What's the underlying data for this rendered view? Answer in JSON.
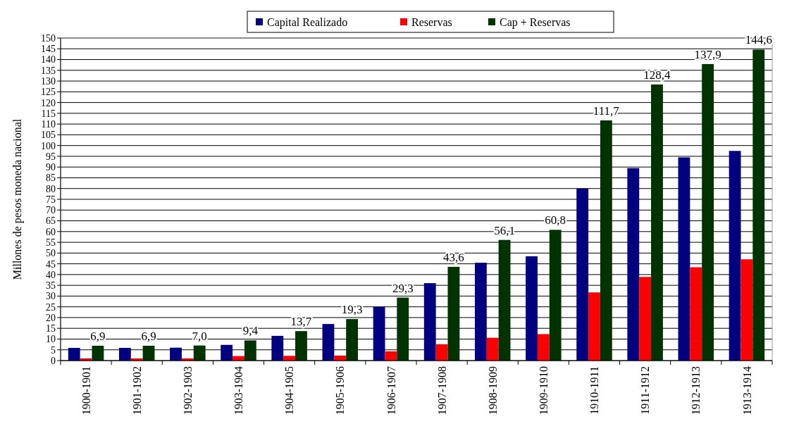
{
  "chart_data": {
    "type": "bar",
    "ylabel": "Millones de pesos moneda nacional",
    "categories": [
      "1900-1901",
      "1901-1902",
      "1902-1903",
      "1903-1904",
      "1904-1905",
      "1905-1906",
      "1906-1907",
      "1907-1908",
      "1908-1909",
      "1909-1910",
      "1910-1911",
      "1911-1912",
      "1912-1913",
      "1913-1914"
    ],
    "series": [
      {
        "name": "Capital Realizado",
        "color": "#000080",
        "values": [
          5.9,
          5.9,
          6.0,
          7.3,
          11.5,
          17.0,
          25.0,
          36.0,
          45.5,
          48.5,
          80.0,
          89.5,
          94.5,
          97.5
        ]
      },
      {
        "name": "Reservas",
        "color": "#ff0000",
        "values": [
          1.0,
          1.0,
          1.0,
          2.1,
          2.2,
          2.3,
          4.3,
          7.6,
          10.6,
          12.3,
          31.7,
          38.9,
          43.4,
          47.1
        ]
      },
      {
        "name": "Cap + Reservas",
        "color": "#003300",
        "values": [
          6.9,
          6.9,
          7.0,
          9.4,
          13.7,
          19.3,
          29.3,
          43.6,
          56.1,
          60.8,
          111.7,
          128.4,
          137.9,
          144.6
        ],
        "value_labels": [
          "6,9",
          "6,9",
          "7,0",
          "9,4",
          "13,7",
          "19,3",
          "29,3",
          "43,6",
          "56,1",
          "60,8",
          "111,7",
          "128,4",
          "137,9",
          "144,6"
        ]
      }
    ],
    "ylim": [
      0,
      150
    ],
    "yticks": [
      0,
      5,
      10,
      15,
      20,
      25,
      30,
      35,
      40,
      45,
      50,
      55,
      60,
      65,
      70,
      75,
      80,
      85,
      90,
      95,
      100,
      105,
      110,
      115,
      120,
      125,
      130,
      135,
      140,
      145,
      150
    ],
    "grid": "y",
    "legend": "top"
  }
}
